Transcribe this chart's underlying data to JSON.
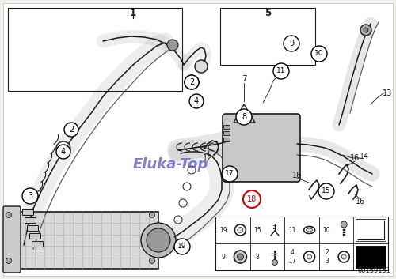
{
  "bg_color": "#f0f0ec",
  "watermark": "Eluka-Top",
  "watermark_color": "#5555bb",
  "watermark_alpha": 0.75,
  "part_number": "00159151",
  "line_color": "#1a1a1a",
  "highlight_color": "#cc0000"
}
